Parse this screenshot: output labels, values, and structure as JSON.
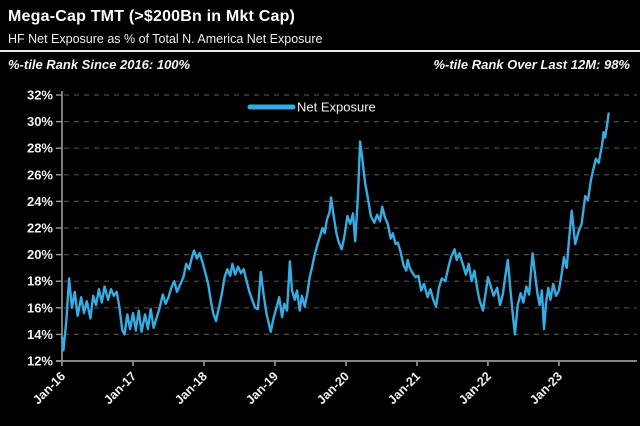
{
  "header": {
    "title": "Mega-Cap TMT (>$200Bn in Mkt Cap)",
    "subtitle": "HF Net Exposure as % of Total N. America Net Exposure",
    "ptile_left": "%-tile Rank Since 2016: 100%",
    "ptile_right": "%-tile Rank Over Last 12M: 98%"
  },
  "colors": {
    "background": "#000000",
    "line": "#36ADE2",
    "text": "#f2f2f2",
    "grid": "#4d4d4d",
    "axis": "#9a9a9a"
  },
  "chart_data": {
    "type": "line",
    "title": "Mega-Cap TMT (>$200Bn in Mkt Cap)",
    "subtitle": "HF Net Exposure as % of Total N. America Net Exposure",
    "xlabel": "",
    "ylabel": "HF Net Exposure (% of Total N. America Net Exposure)",
    "ylim": [
      12,
      32
    ],
    "xlim": [
      2016.0,
      2024.1
    ],
    "grid": "horizontal-dashed",
    "legend_position": "top-center-inside",
    "legend": [
      {
        "name": "Net Exposure",
        "color": "#36ADE2"
      }
    ],
    "y_ticks": [
      "32%",
      "30%",
      "28%",
      "26%",
      "24%",
      "22%",
      "20%",
      "18%",
      "16%",
      "14%",
      "12%"
    ],
    "x_ticks": [
      {
        "t": 2016,
        "label": "Jan-16"
      },
      {
        "t": 2017,
        "label": "Jan-17"
      },
      {
        "t": 2018,
        "label": "Jan-18"
      },
      {
        "t": 2019,
        "label": "Jan-19"
      },
      {
        "t": 2020,
        "label": "Jan-20"
      },
      {
        "t": 2021,
        "label": "Jan-21"
      },
      {
        "t": 2022,
        "label": "Jan-22"
      },
      {
        "t": 2023,
        "label": "Jan-23"
      }
    ],
    "series": [
      {
        "name": "Net Exposure",
        "points": [
          [
            2016.0,
            13.8
          ],
          [
            2016.02,
            12.8
          ],
          [
            2016.06,
            15.0
          ],
          [
            2016.1,
            18.2
          ],
          [
            2016.14,
            16.0
          ],
          [
            2016.18,
            17.2
          ],
          [
            2016.22,
            15.4
          ],
          [
            2016.27,
            16.8
          ],
          [
            2016.31,
            15.6
          ],
          [
            2016.35,
            16.5
          ],
          [
            2016.4,
            15.2
          ],
          [
            2016.44,
            16.9
          ],
          [
            2016.48,
            16.2
          ],
          [
            2016.52,
            17.4
          ],
          [
            2016.56,
            16.4
          ],
          [
            2016.6,
            17.6
          ],
          [
            2016.65,
            16.6
          ],
          [
            2016.69,
            17.4
          ],
          [
            2016.73,
            16.9
          ],
          [
            2016.77,
            17.2
          ],
          [
            2016.81,
            16.0
          ],
          [
            2016.85,
            14.3
          ],
          [
            2016.88,
            14.0
          ],
          [
            2016.92,
            15.5
          ],
          [
            2016.96,
            14.4
          ],
          [
            2017.0,
            15.6
          ],
          [
            2017.04,
            14.3
          ],
          [
            2017.08,
            15.8
          ],
          [
            2017.12,
            14.2
          ],
          [
            2017.17,
            15.5
          ],
          [
            2017.21,
            14.4
          ],
          [
            2017.25,
            15.9
          ],
          [
            2017.29,
            14.5
          ],
          [
            2017.33,
            15.2
          ],
          [
            2017.37,
            15.9
          ],
          [
            2017.42,
            17.0
          ],
          [
            2017.46,
            16.3
          ],
          [
            2017.5,
            16.8
          ],
          [
            2017.54,
            17.5
          ],
          [
            2017.58,
            18.0
          ],
          [
            2017.62,
            17.2
          ],
          [
            2017.67,
            17.8
          ],
          [
            2017.71,
            18.3
          ],
          [
            2017.75,
            19.3
          ],
          [
            2017.79,
            18.9
          ],
          [
            2017.83,
            19.8
          ],
          [
            2017.86,
            20.3
          ],
          [
            2017.9,
            19.7
          ],
          [
            2017.94,
            20.1
          ],
          [
            2017.98,
            19.4
          ],
          [
            2018.02,
            18.6
          ],
          [
            2018.06,
            17.8
          ],
          [
            2018.1,
            16.4
          ],
          [
            2018.13,
            15.6
          ],
          [
            2018.17,
            15.0
          ],
          [
            2018.21,
            16.0
          ],
          [
            2018.25,
            17.0
          ],
          [
            2018.29,
            18.3
          ],
          [
            2018.33,
            18.9
          ],
          [
            2018.37,
            18.4
          ],
          [
            2018.4,
            19.3
          ],
          [
            2018.44,
            18.5
          ],
          [
            2018.48,
            19.1
          ],
          [
            2018.52,
            18.6
          ],
          [
            2018.56,
            18.9
          ],
          [
            2018.6,
            18.0
          ],
          [
            2018.64,
            17.2
          ],
          [
            2018.68,
            16.6
          ],
          [
            2018.72,
            16.0
          ],
          [
            2018.76,
            15.9
          ],
          [
            2018.8,
            18.7
          ],
          [
            2018.84,
            17.0
          ],
          [
            2018.88,
            15.6
          ],
          [
            2018.94,
            14.2
          ],
          [
            2018.98,
            15.2
          ],
          [
            2019.02,
            16.0
          ],
          [
            2019.06,
            16.8
          ],
          [
            2019.1,
            15.3
          ],
          [
            2019.13,
            16.3
          ],
          [
            2019.17,
            15.8
          ],
          [
            2019.21,
            19.5
          ],
          [
            2019.24,
            17.3
          ],
          [
            2019.28,
            16.6
          ],
          [
            2019.31,
            17.3
          ],
          [
            2019.35,
            15.8
          ],
          [
            2019.38,
            16.9
          ],
          [
            2019.42,
            16.1
          ],
          [
            2019.46,
            17.2
          ],
          [
            2019.49,
            18.3
          ],
          [
            2019.52,
            19.0
          ],
          [
            2019.56,
            20.0
          ],
          [
            2019.6,
            20.8
          ],
          [
            2019.63,
            21.3
          ],
          [
            2019.67,
            22.0
          ],
          [
            2019.7,
            21.6
          ],
          [
            2019.73,
            22.6
          ],
          [
            2019.77,
            23.2
          ],
          [
            2019.79,
            24.3
          ],
          [
            2019.83,
            22.8
          ],
          [
            2019.87,
            21.5
          ],
          [
            2019.9,
            20.9
          ],
          [
            2019.94,
            20.4
          ],
          [
            2019.98,
            21.4
          ],
          [
            2020.02,
            22.9
          ],
          [
            2020.06,
            22.3
          ],
          [
            2020.1,
            23.1
          ],
          [
            2020.13,
            21.0
          ],
          [
            2020.17,
            24.5
          ],
          [
            2020.2,
            28.5
          ],
          [
            2020.23,
            27.2
          ],
          [
            2020.27,
            25.4
          ],
          [
            2020.31,
            24.2
          ],
          [
            2020.35,
            22.9
          ],
          [
            2020.4,
            22.4
          ],
          [
            2020.44,
            23.0
          ],
          [
            2020.48,
            22.5
          ],
          [
            2020.51,
            23.6
          ],
          [
            2020.55,
            22.8
          ],
          [
            2020.59,
            22.3
          ],
          [
            2020.63,
            21.2
          ],
          [
            2020.66,
            21.6
          ],
          [
            2020.7,
            20.8
          ],
          [
            2020.73,
            20.9
          ],
          [
            2020.77,
            20.2
          ],
          [
            2020.81,
            19.2
          ],
          [
            2020.85,
            18.8
          ],
          [
            2020.87,
            19.6
          ],
          [
            2020.9,
            19.0
          ],
          [
            2020.94,
            18.6
          ],
          [
            2020.98,
            18.3
          ],
          [
            2021.02,
            18.4
          ],
          [
            2021.06,
            17.3
          ],
          [
            2021.1,
            17.8
          ],
          [
            2021.15,
            16.8
          ],
          [
            2021.19,
            17.4
          ],
          [
            2021.23,
            16.6
          ],
          [
            2021.27,
            16.1
          ],
          [
            2021.31,
            17.5
          ],
          [
            2021.35,
            18.2
          ],
          [
            2021.4,
            18.0
          ],
          [
            2021.44,
            19.0
          ],
          [
            2021.48,
            19.8
          ],
          [
            2021.53,
            20.4
          ],
          [
            2021.56,
            19.6
          ],
          [
            2021.6,
            20.1
          ],
          [
            2021.65,
            19.2
          ],
          [
            2021.69,
            18.5
          ],
          [
            2021.73,
            19.3
          ],
          [
            2021.77,
            18.0
          ],
          [
            2021.81,
            18.8
          ],
          [
            2021.85,
            17.4
          ],
          [
            2021.88,
            16.6
          ],
          [
            2021.93,
            15.8
          ],
          [
            2021.97,
            17.2
          ],
          [
            2022.0,
            18.3
          ],
          [
            2022.04,
            17.6
          ],
          [
            2022.08,
            16.9
          ],
          [
            2022.13,
            17.5
          ],
          [
            2022.17,
            16.2
          ],
          [
            2022.21,
            17.0
          ],
          [
            2022.25,
            18.6
          ],
          [
            2022.28,
            19.6
          ],
          [
            2022.32,
            17.2
          ],
          [
            2022.35,
            15.5
          ],
          [
            2022.38,
            14.0
          ],
          [
            2022.42,
            16.2
          ],
          [
            2022.46,
            17.1
          ],
          [
            2022.5,
            16.4
          ],
          [
            2022.54,
            17.6
          ],
          [
            2022.58,
            17.0
          ],
          [
            2022.61,
            18.9
          ],
          [
            2022.63,
            20.1
          ],
          [
            2022.67,
            18.2
          ],
          [
            2022.7,
            17.0
          ],
          [
            2022.73,
            16.2
          ],
          [
            2022.76,
            17.3
          ],
          [
            2022.79,
            14.4
          ],
          [
            2022.82,
            16.4
          ],
          [
            2022.85,
            17.5
          ],
          [
            2022.88,
            16.6
          ],
          [
            2022.92,
            17.8
          ],
          [
            2022.96,
            16.9
          ],
          [
            2023.0,
            17.3
          ],
          [
            2023.04,
            18.6
          ],
          [
            2023.07,
            19.8
          ],
          [
            2023.11,
            19.0
          ],
          [
            2023.14,
            21.0
          ],
          [
            2023.18,
            23.3
          ],
          [
            2023.23,
            20.8
          ],
          [
            2023.28,
            21.8
          ],
          [
            2023.32,
            22.3
          ],
          [
            2023.37,
            24.4
          ],
          [
            2023.41,
            24.1
          ],
          [
            2023.45,
            25.6
          ],
          [
            2023.48,
            26.3
          ],
          [
            2023.52,
            27.2
          ],
          [
            2023.56,
            26.9
          ],
          [
            2023.61,
            28.3
          ],
          [
            2023.63,
            29.2
          ],
          [
            2023.65,
            28.8
          ],
          [
            2023.68,
            29.8
          ],
          [
            2023.7,
            30.6
          ]
        ]
      }
    ]
  }
}
